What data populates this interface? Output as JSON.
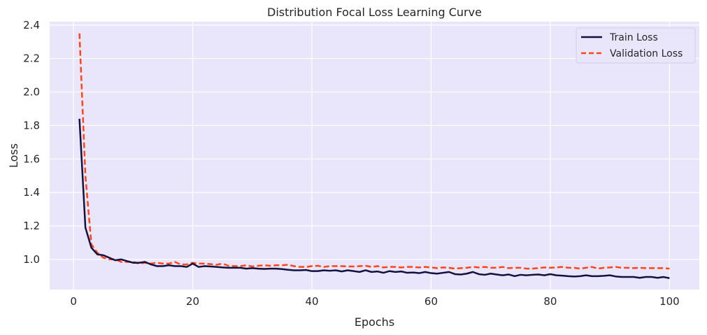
{
  "chart_data": {
    "type": "line",
    "title": "Distribution Focal Loss Learning Curve",
    "xlabel": "Epochs",
    "ylabel": "Loss",
    "xlim": [
      -4,
      105
    ],
    "ylim": [
      0.82,
      2.42
    ],
    "xticks": [
      0,
      20,
      40,
      60,
      80,
      100
    ],
    "yticks": [
      1.0,
      1.2,
      1.4,
      1.6,
      1.8,
      2.0,
      2.2,
      2.4
    ],
    "xtick_labels": [
      "0",
      "20",
      "40",
      "60",
      "80",
      "100"
    ],
    "ytick_labels": [
      "1.0",
      "1.2",
      "1.4",
      "1.6",
      "1.8",
      "2.0",
      "2.2",
      "2.4"
    ],
    "grid": true,
    "background": "#e9e6fb",
    "legend_position": "top-right",
    "x": [
      1,
      2,
      3,
      4,
      5,
      6,
      7,
      8,
      9,
      10,
      11,
      12,
      13,
      14,
      15,
      16,
      17,
      18,
      19,
      20,
      21,
      22,
      23,
      24,
      25,
      26,
      27,
      28,
      29,
      30,
      31,
      32,
      33,
      34,
      35,
      36,
      37,
      38,
      39,
      40,
      41,
      42,
      43,
      44,
      45,
      46,
      47,
      48,
      49,
      50,
      51,
      52,
      53,
      54,
      55,
      56,
      57,
      58,
      59,
      60,
      61,
      62,
      63,
      64,
      65,
      66,
      67,
      68,
      69,
      70,
      71,
      72,
      73,
      74,
      75,
      76,
      77,
      78,
      79,
      80,
      81,
      82,
      83,
      84,
      85,
      86,
      87,
      88,
      89,
      90,
      91,
      92,
      93,
      94,
      95,
      96,
      97,
      98,
      99,
      100
    ],
    "series": [
      {
        "name": "Train Loss",
        "color": "#14103f",
        "style": "solid",
        "values": [
          1.84,
          1.19,
          1.07,
          1.03,
          1.025,
          1.01,
          0.995,
          1.0,
          0.99,
          0.98,
          0.98,
          0.985,
          0.97,
          0.96,
          0.96,
          0.965,
          0.96,
          0.96,
          0.955,
          0.975,
          0.955,
          0.96,
          0.958,
          0.955,
          0.952,
          0.95,
          0.95,
          0.95,
          0.945,
          0.948,
          0.945,
          0.943,
          0.945,
          0.945,
          0.942,
          0.938,
          0.935,
          0.935,
          0.937,
          0.93,
          0.93,
          0.935,
          0.932,
          0.935,
          0.928,
          0.935,
          0.93,
          0.925,
          0.935,
          0.925,
          0.928,
          0.92,
          0.93,
          0.925,
          0.928,
          0.92,
          0.922,
          0.918,
          0.925,
          0.918,
          0.915,
          0.92,
          0.925,
          0.912,
          0.91,
          0.915,
          0.925,
          0.912,
          0.908,
          0.915,
          0.91,
          0.905,
          0.91,
          0.9,
          0.908,
          0.905,
          0.908,
          0.91,
          0.905,
          0.912,
          0.905,
          0.903,
          0.9,
          0.898,
          0.9,
          0.905,
          0.9,
          0.9,
          0.902,
          0.905,
          0.898,
          0.895,
          0.895,
          0.895,
          0.89,
          0.895,
          0.895,
          0.89,
          0.895,
          0.888
        ]
      },
      {
        "name": "Validation Loss",
        "color": "#ff4515",
        "style": "dashed",
        "values": [
          2.35,
          1.5,
          1.09,
          1.04,
          1.01,
          1.0,
          1.0,
          0.985,
          0.985,
          0.985,
          0.975,
          0.98,
          0.975,
          0.98,
          0.975,
          0.975,
          0.985,
          0.97,
          0.97,
          0.98,
          0.975,
          0.975,
          0.972,
          0.968,
          0.975,
          0.962,
          0.96,
          0.96,
          0.965,
          0.958,
          0.962,
          0.965,
          0.962,
          0.965,
          0.965,
          0.968,
          0.96,
          0.955,
          0.955,
          0.96,
          0.962,
          0.955,
          0.96,
          0.96,
          0.96,
          0.958,
          0.958,
          0.96,
          0.962,
          0.955,
          0.96,
          0.952,
          0.955,
          0.955,
          0.952,
          0.955,
          0.955,
          0.952,
          0.955,
          0.952,
          0.948,
          0.952,
          0.95,
          0.945,
          0.948,
          0.95,
          0.955,
          0.952,
          0.955,
          0.95,
          0.95,
          0.955,
          0.948,
          0.95,
          0.95,
          0.945,
          0.945,
          0.948,
          0.952,
          0.95,
          0.952,
          0.955,
          0.95,
          0.95,
          0.945,
          0.95,
          0.955,
          0.945,
          0.95,
          0.952,
          0.955,
          0.95,
          0.95,
          0.948,
          0.95,
          0.948,
          0.948,
          0.948,
          0.948,
          0.945
        ]
      }
    ]
  }
}
